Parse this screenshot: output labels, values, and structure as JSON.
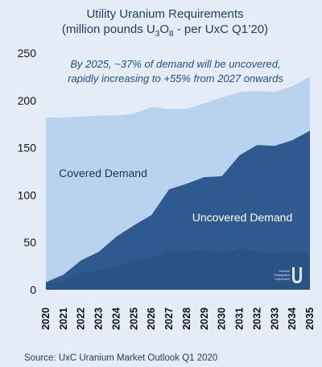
{
  "chart_data": {
    "type": "area",
    "title_line1": "Utility Uranium Requirements",
    "title_line2_pre": "(million pounds U",
    "title_line2_sub1": "3",
    "title_line2_mid": "O",
    "title_line2_sub2": "8",
    "title_line2_post": " - per UxC Q1’20)",
    "annotation_line1": "By 2025, ~37% of demand will be uncovered,",
    "annotation_line2": "rapidly increasing to +55% from 2027 onwards",
    "x": [
      "2020",
      "2021",
      "2022",
      "2023",
      "2024",
      "2025",
      "2026",
      "2027",
      "2028",
      "2029",
      "2030",
      "2031",
      "2032",
      "2033",
      "2034",
      "2035"
    ],
    "yticks": [
      "0",
      "50",
      "100",
      "150",
      "200",
      "250"
    ],
    "ylim": [
      0,
      250
    ],
    "series": [
      {
        "name": "Covered Demand",
        "values": [
          182,
          182,
          183,
          184,
          184,
          186,
          193,
          191,
          191,
          197,
          203,
          209,
          210,
          209,
          215,
          225
        ],
        "color": "#b9d3ee"
      },
      {
        "name": "Uncovered Demand",
        "values": [
          8,
          16,
          31,
          40,
          56,
          68,
          79,
          106,
          112,
          119,
          120,
          142,
          153,
          152,
          158,
          168
        ],
        "color": "#2f5a8f"
      }
    ],
    "underlying_band": {
      "values": [
        5,
        10,
        18,
        20,
        25,
        31,
        34,
        41,
        40,
        42,
        38,
        44,
        40,
        38,
        40,
        38
      ],
      "color": "#2a5385"
    },
    "source": "Source: UxC Uranium Market Outlook Q1 2020",
    "logo_text": [
      "Uranium",
      "Participation",
      "Corporation"
    ]
  }
}
